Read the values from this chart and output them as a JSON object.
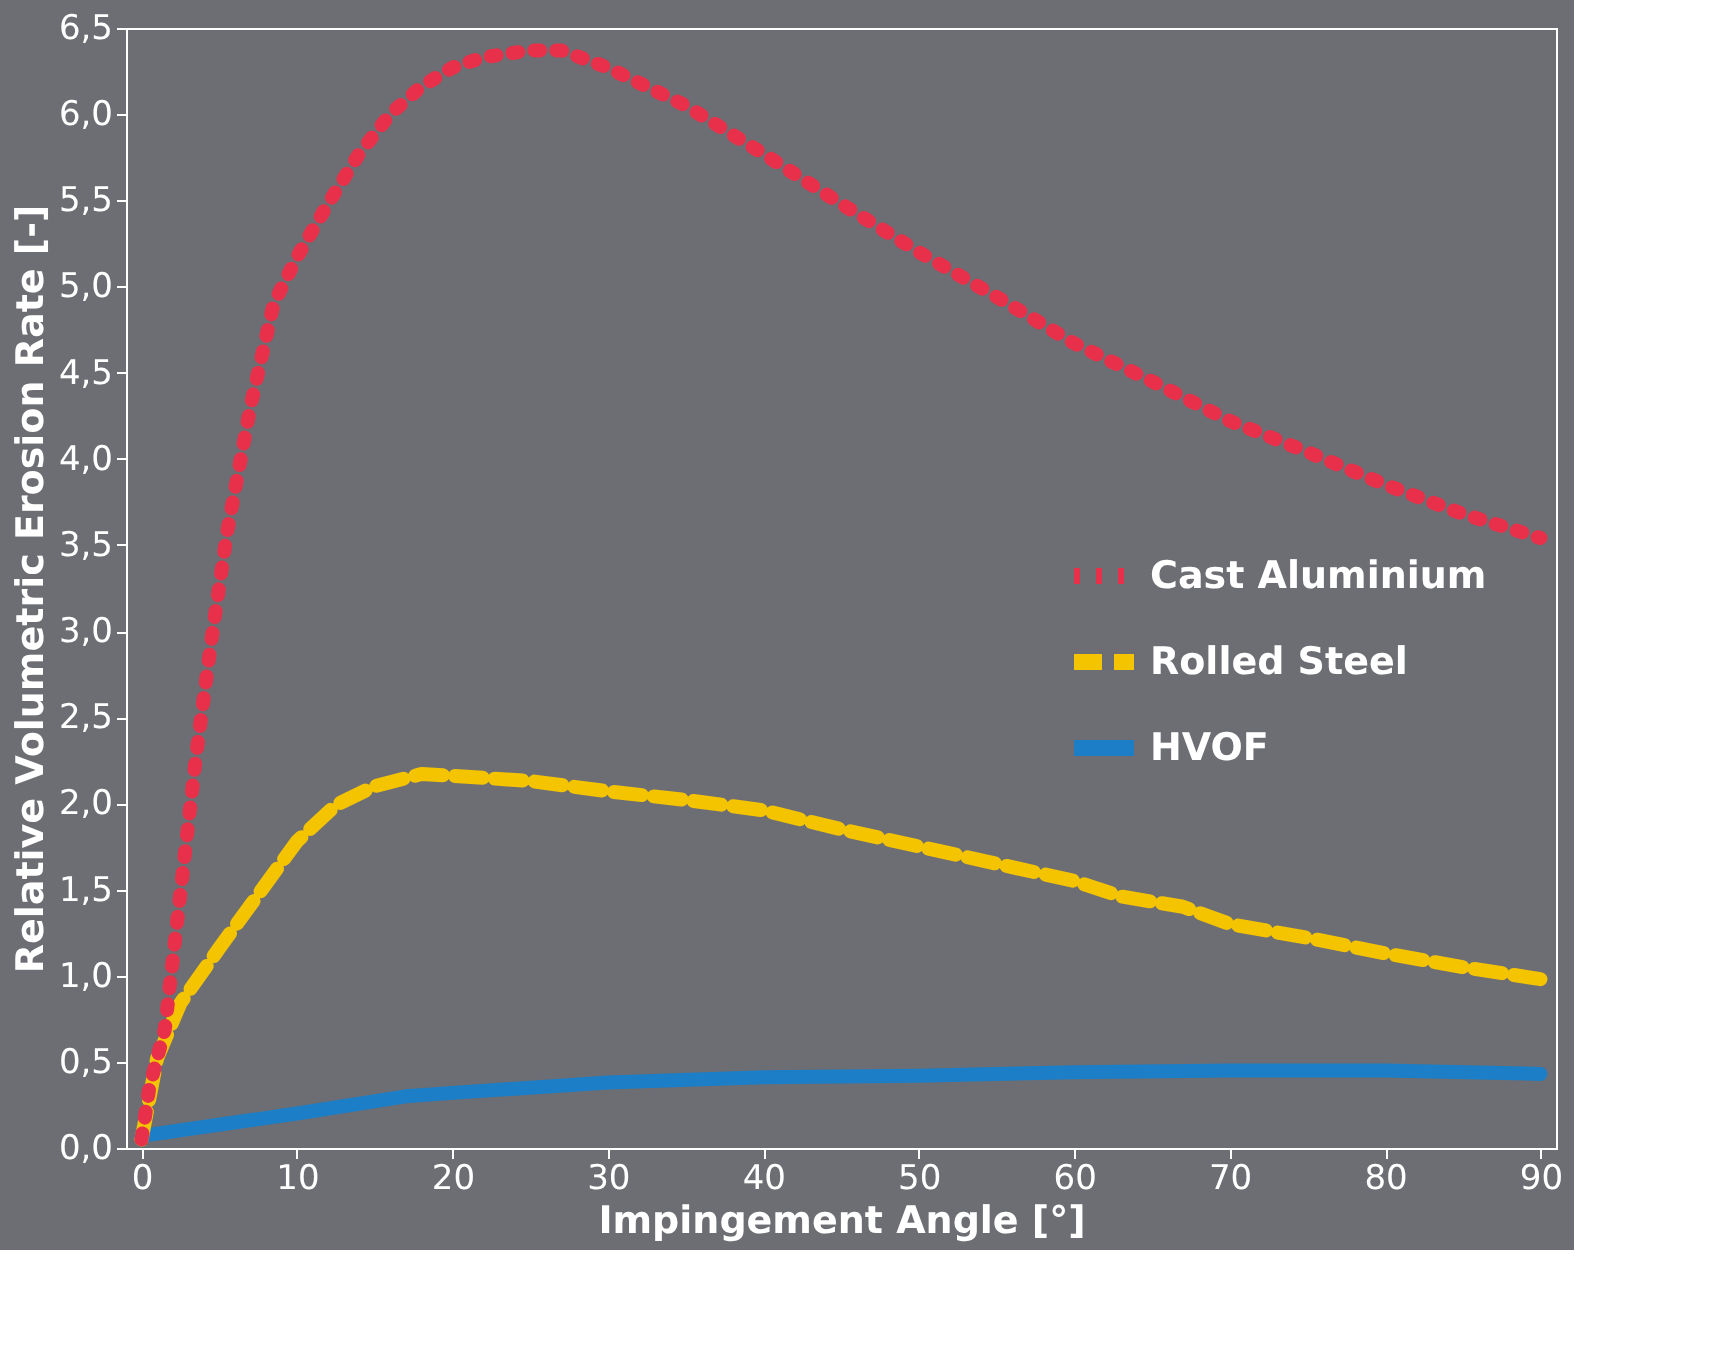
{
  "chart_data": {
    "type": "line",
    "xlabel": "Impingement Angle [°]",
    "ylabel": "Relative Volumetric Erosion Rate [-]",
    "xlim": [
      -1,
      91
    ],
    "xticks": [
      0,
      10,
      20,
      30,
      40,
      50,
      60,
      70,
      80,
      90
    ],
    "ylim": [
      0,
      6.5
    ],
    "yticks": [
      {
        "value": 0,
        "label": "0,0"
      },
      {
        "value": 0.5,
        "label": "0,5"
      },
      {
        "value": 1,
        "label": "1,0"
      },
      {
        "value": 1.5,
        "label": "1,5"
      },
      {
        "value": 2,
        "label": "2,0"
      },
      {
        "value": 2.5,
        "label": "2,5"
      },
      {
        "value": 3,
        "label": "3,0"
      },
      {
        "value": 3.5,
        "label": "3,5"
      },
      {
        "value": 4,
        "label": "4,0"
      },
      {
        "value": 4.5,
        "label": "4,5"
      },
      {
        "value": 5,
        "label": "5,0"
      },
      {
        "value": 5.5,
        "label": "5,5"
      },
      {
        "value": 6,
        "label": "6,0"
      },
      {
        "value": 6.5,
        "label": "6,5"
      }
    ],
    "grid": false,
    "legend": "right",
    "series": [
      {
        "name": "Cast Aluminium",
        "color": "#e8304a",
        "line_style": "dotted",
        "x": [
          0,
          0.5,
          1.5,
          2.5,
          3.5,
          4.5,
          5.5,
          7,
          8.5,
          10,
          12,
          14,
          16,
          18,
          20,
          22,
          25,
          27,
          30,
          35,
          40,
          45,
          50,
          55,
          60,
          65,
          70,
          75,
          80,
          85,
          90
        ],
        "values": [
          0.05,
          0.35,
          0.69,
          1.48,
          2.27,
          2.95,
          3.57,
          4.3,
          4.9,
          5.17,
          5.48,
          5.77,
          6.0,
          6.16,
          6.27,
          6.33,
          6.37,
          6.37,
          6.27,
          6.05,
          5.77,
          5.48,
          5.2,
          4.94,
          4.67,
          4.45,
          4.22,
          4.04,
          3.85,
          3.68,
          3.54
        ]
      },
      {
        "name": "Rolled Steel",
        "color": "#f5c400",
        "line_style": "dashed",
        "x": [
          0,
          1,
          2.5,
          5,
          10,
          12.5,
          15,
          18,
          20,
          25,
          30,
          35,
          40,
          45,
          50,
          55,
          60,
          63,
          67,
          70,
          75,
          80,
          85,
          90
        ],
        "values": [
          0.05,
          0.52,
          0.84,
          1.16,
          1.78,
          1.99,
          2.1,
          2.17,
          2.16,
          2.13,
          2.07,
          2.02,
          1.96,
          1.85,
          1.75,
          1.65,
          1.55,
          1.46,
          1.4,
          1.3,
          1.22,
          1.13,
          1.05,
          0.98
        ]
      },
      {
        "name": "HVOF",
        "color": "#1c7ec6",
        "line_style": "solid",
        "x": [
          0,
          10,
          17,
          20,
          30,
          40,
          50,
          60,
          70,
          80,
          90
        ],
        "values": [
          0.07,
          0.2,
          0.3,
          0.32,
          0.38,
          0.41,
          0.42,
          0.44,
          0.45,
          0.45,
          0.43
        ]
      }
    ]
  }
}
